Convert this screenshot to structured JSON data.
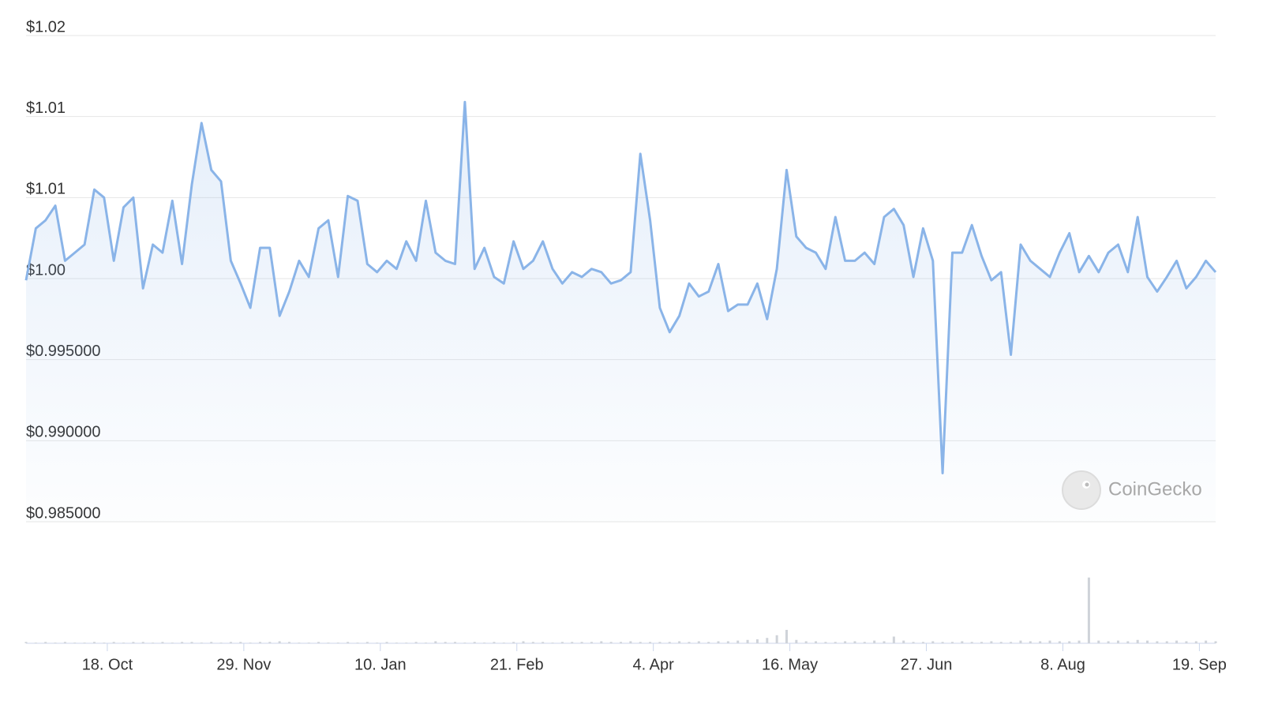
{
  "chart_data": {
    "type": "line",
    "color": "#8ab4e8",
    "volume_color": "#cfd3d9",
    "watermark": "CoinGecko",
    "grid": true,
    "xlim": [
      0,
      366
    ],
    "ylim": [
      0.985,
      1.015
    ],
    "volume_ylim": [
      0,
      100
    ],
    "yticks": [
      {
        "value": 0.985,
        "label": "$0.985000"
      },
      {
        "value": 0.99,
        "label": "$0.990000"
      },
      {
        "value": 0.995,
        "label": "$0.995000"
      },
      {
        "value": 1.0,
        "label": "$1.00"
      },
      {
        "value": 1.005,
        "label": "$1.01"
      },
      {
        "value": 1.01,
        "label": "$1.01"
      },
      {
        "value": 1.015,
        "label": "$1.02"
      }
    ],
    "xticks": [
      {
        "value": 25,
        "label": "18. Oct"
      },
      {
        "value": 67,
        "label": "29. Nov"
      },
      {
        "value": 109,
        "label": "10. Jan"
      },
      {
        "value": 151,
        "label": "21. Feb"
      },
      {
        "value": 193,
        "label": "4. Apr"
      },
      {
        "value": 235,
        "label": "16. May"
      },
      {
        "value": 277,
        "label": "27. Jun"
      },
      {
        "value": 319,
        "label": "8. Aug"
      },
      {
        "value": 361,
        "label": "19. Sep"
      }
    ],
    "x": [
      0,
      3,
      6,
      9,
      12,
      15,
      18,
      21,
      24,
      27,
      30,
      33,
      36,
      39,
      42,
      45,
      48,
      51,
      54,
      57,
      60,
      63,
      66,
      69,
      72,
      75,
      78,
      81,
      84,
      87,
      90,
      93,
      96,
      99,
      102,
      105,
      108,
      111,
      114,
      117,
      120,
      123,
      126,
      129,
      132,
      135,
      138,
      141,
      144,
      147,
      150,
      153,
      156,
      159,
      162,
      165,
      168,
      171,
      174,
      177,
      180,
      183,
      186,
      189,
      192,
      195,
      198,
      201,
      204,
      207,
      210,
      213,
      216,
      219,
      222,
      225,
      228,
      231,
      234,
      237,
      240,
      243,
      246,
      249,
      252,
      255,
      258,
      261,
      264,
      267,
      270,
      273,
      276,
      279,
      282,
      285,
      288,
      291,
      294,
      297,
      300,
      303,
      306,
      309,
      312,
      315,
      318,
      321,
      324,
      327,
      330,
      333,
      336,
      339,
      342,
      345,
      348,
      351,
      354,
      357,
      360,
      363,
      366
    ],
    "values": [
      0.9999,
      1.0031,
      1.0036,
      1.0045,
      1.0011,
      1.0016,
      1.0021,
      1.0055,
      1.005,
      1.0011,
      1.0044,
      1.005,
      0.9994,
      1.0021,
      1.0016,
      1.0048,
      1.0009,
      1.0058,
      1.0096,
      1.0067,
      1.006,
      1.0011,
      0.9997,
      0.9982,
      1.0019,
      1.0019,
      0.9977,
      0.9992,
      1.0011,
      1.0001,
      1.0031,
      1.0036,
      1.0001,
      1.0051,
      1.0048,
      1.0009,
      1.0004,
      1.0011,
      1.0006,
      1.0023,
      1.0011,
      1.0048,
      1.0016,
      1.0011,
      1.0009,
      1.0109,
      1.0006,
      1.0019,
      1.0001,
      0.9997,
      1.0023,
      1.0006,
      1.0011,
      1.0023,
      1.0006,
      0.9997,
      1.0004,
      1.0001,
      1.0006,
      1.0004,
      0.9997,
      0.9999,
      1.0004,
      1.0077,
      1.0036,
      0.9982,
      0.9967,
      0.9977,
      0.9997,
      0.9989,
      0.9992,
      1.0009,
      0.998,
      0.9984,
      0.9984,
      0.9997,
      0.9975,
      1.0006,
      1.0067,
      1.0026,
      1.0019,
      1.0016,
      1.0006,
      1.0038,
      1.0011,
      1.0011,
      1.0016,
      1.0009,
      1.0038,
      1.0043,
      1.0033,
      1.0001,
      1.0031,
      1.0011,
      0.988,
      1.0016,
      1.0016,
      1.0033,
      1.0014,
      0.9999,
      1.0004,
      0.9953,
      1.0021,
      1.0011,
      1.0006,
      1.0001,
      1.0016,
      1.0028,
      1.0004,
      1.0014,
      1.0004,
      1.0016,
      1.0021,
      1.0004,
      1.0038,
      1.0001,
      0.9992,
      1.0001,
      1.0011,
      0.9994,
      1.0001,
      1.0011,
      1.0004
    ],
    "volume": [
      2,
      1,
      2,
      1,
      2,
      1,
      1,
      2,
      1,
      2,
      1,
      2,
      2,
      1,
      2,
      1,
      2,
      2,
      1,
      2,
      1,
      2,
      2,
      1,
      2,
      2,
      3,
      2,
      1,
      1,
      2,
      1,
      1,
      2,
      1,
      2,
      1,
      2,
      1,
      1,
      2,
      1,
      3,
      2,
      2,
      1,
      2,
      1,
      2,
      1,
      2,
      3,
      2,
      2,
      1,
      2,
      2,
      2,
      2,
      3,
      2,
      2,
      3,
      2,
      2,
      2,
      2,
      3,
      2,
      3,
      2,
      3,
      3,
      4,
      5,
      6,
      8,
      12,
      20,
      5,
      3,
      3,
      2,
      2,
      3,
      3,
      2,
      4,
      3,
      10,
      4,
      2,
      2,
      3,
      2,
      2,
      3,
      2,
      2,
      3,
      2,
      2,
      4,
      3,
      3,
      4,
      3,
      3,
      4,
      98,
      4,
      3,
      4,
      3,
      5,
      4,
      3,
      3,
      4,
      3,
      3,
      4,
      3
    ]
  }
}
